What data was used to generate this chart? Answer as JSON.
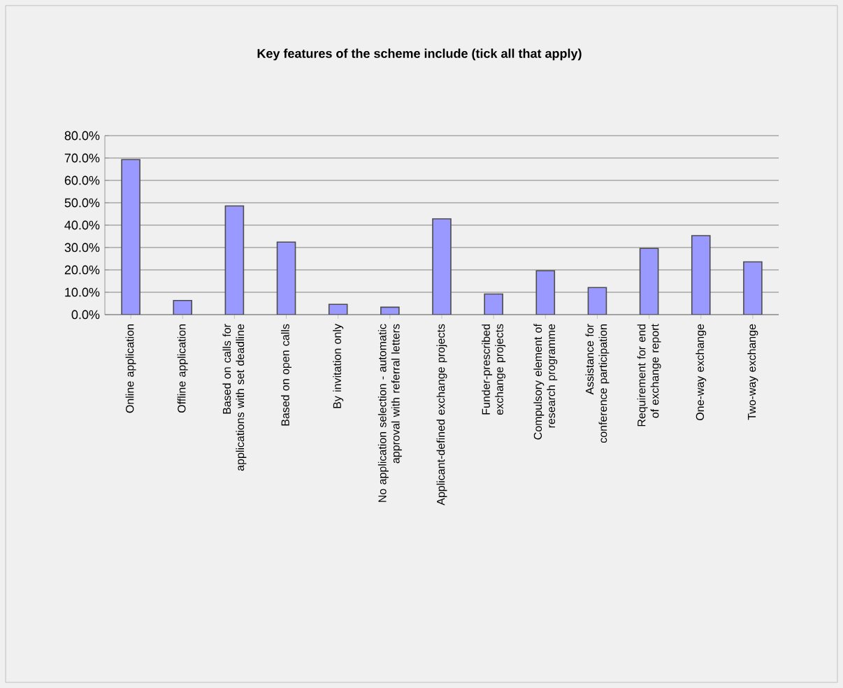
{
  "chart_data": {
    "type": "bar",
    "title": "Key features of the scheme include (tick all that apply)",
    "categories": [
      "Online application",
      "Offline application",
      "Based on calls for applications with set deadline",
      "Based on open calls",
      "By invitation only",
      "No application selection - automatic approval with referral letters",
      "Applicant-defined exchange projects",
      "Funder-prescribed exchange projects",
      "Compulsory element of research programme",
      "Assistance for conference participation",
      "Requirement for end of exchange report",
      "One-way exchange",
      "Two-way exchange"
    ],
    "values": [
      69.3,
      6.3,
      48.6,
      32.4,
      4.6,
      3.3,
      42.8,
      9.2,
      19.6,
      12.1,
      29.6,
      35.3,
      23.6
    ],
    "color": "#9999ff",
    "ylim": [
      0,
      80
    ],
    "yticks": [
      {
        "value": 0,
        "label": "0.0%"
      },
      {
        "value": 10,
        "label": "10.0%"
      },
      {
        "value": 20,
        "label": "20.0%"
      },
      {
        "value": 30,
        "label": "30.0%"
      },
      {
        "value": 40,
        "label": "40.0%"
      },
      {
        "value": 50,
        "label": "50.0%"
      },
      {
        "value": 60,
        "label": "60.0%"
      },
      {
        "value": 70,
        "label": "70.0%"
      },
      {
        "value": 80,
        "label": "80.0%"
      }
    ],
    "grid": "y"
  }
}
